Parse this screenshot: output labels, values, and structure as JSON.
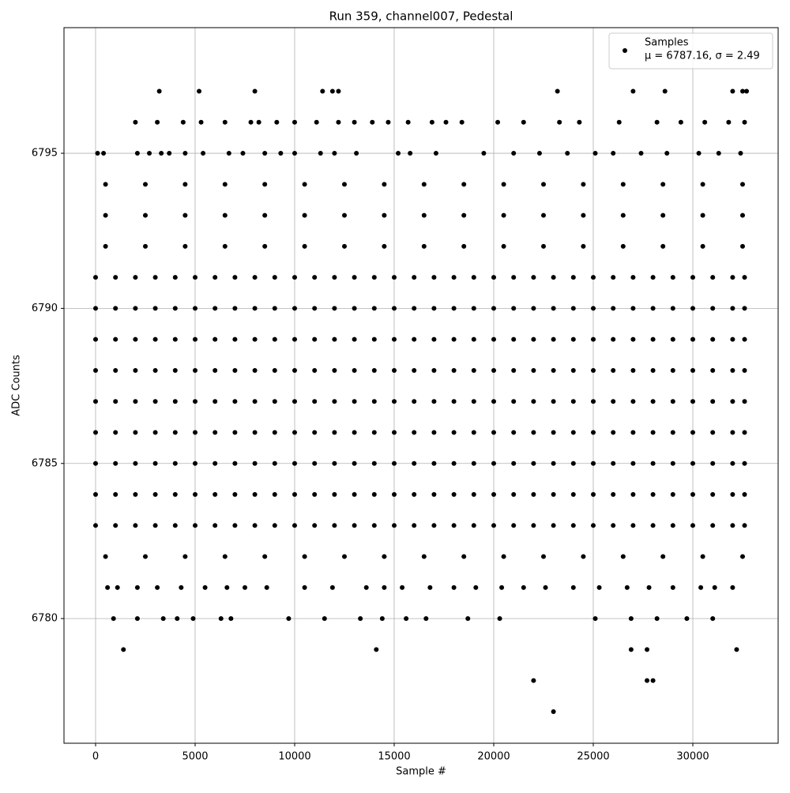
{
  "chart_data": {
    "type": "scatter",
    "title": "Run 359, channel007, Pedestal",
    "x_label": "Sample #",
    "y_label": "ADC Counts",
    "xlim": [
      -1587,
      34286
    ],
    "ylim": [
      6775.98,
      6799.05
    ],
    "xticks": [
      0,
      5000,
      10000,
      15000,
      20000,
      25000,
      30000
    ],
    "yticks": [
      6780,
      6785,
      6790,
      6795
    ],
    "grid": true,
    "legend": "upper right",
    "series": [
      {
        "name": "Samples",
        "subtitle": "μ = 6787.16, σ = 2.49",
        "color": "#000000",
        "x": [
          0,
          1000,
          2000,
          3000,
          4000,
          5000,
          6000,
          7000,
          8000,
          9000,
          10000,
          11000,
          12000,
          13000,
          14000,
          15000,
          16000,
          17000,
          18000,
          19000,
          20000,
          21000,
          22000,
          23000,
          24000,
          25000,
          26000,
          27000,
          28000,
          29000,
          30000,
          31000,
          32000,
          32600,
          0,
          1000,
          2000,
          3000,
          4000,
          5000,
          6000,
          7000,
          8000,
          9000,
          10000,
          11000,
          12000,
          13000,
          14000,
          15000,
          16000,
          17000,
          18000,
          19000,
          20000,
          21000,
          22000,
          23000,
          24000,
          25000,
          26000,
          27000,
          28000,
          29000,
          30000,
          31000,
          32000,
          32600,
          0,
          1000,
          2000,
          3000,
          4000,
          5000,
          6000,
          7000,
          8000,
          9000,
          10000,
          11000,
          12000,
          13000,
          14000,
          15000,
          16000,
          17000,
          18000,
          19000,
          20000,
          21000,
          22000,
          23000,
          24000,
          25000,
          26000,
          27000,
          28000,
          29000,
          30000,
          31000,
          32000,
          32600,
          0,
          1000,
          2000,
          3000,
          4000,
          5000,
          6000,
          7000,
          8000,
          9000,
          10000,
          11000,
          12000,
          13000,
          14000,
          15000,
          16000,
          17000,
          18000,
          19000,
          20000,
          21000,
          22000,
          23000,
          24000,
          25000,
          26000,
          27000,
          28000,
          29000,
          30000,
          31000,
          32000,
          32600,
          0,
          1000,
          2000,
          3000,
          4000,
          5000,
          6000,
          7000,
          8000,
          9000,
          10000,
          11000,
          12000,
          13000,
          14000,
          15000,
          16000,
          17000,
          18000,
          19000,
          20000,
          21000,
          22000,
          23000,
          24000,
          25000,
          26000,
          27000,
          28000,
          29000,
          30000,
          31000,
          32000,
          32600,
          0,
          1000,
          2000,
          3000,
          4000,
          5000,
          6000,
          7000,
          8000,
          9000,
          10000,
          11000,
          12000,
          13000,
          14000,
          15000,
          16000,
          17000,
          18000,
          19000,
          20000,
          21000,
          22000,
          23000,
          24000,
          25000,
          26000,
          27000,
          28000,
          29000,
          30000,
          31000,
          32000,
          32600,
          0,
          1000,
          2000,
          3000,
          4000,
          5000,
          6000,
          7000,
          8000,
          9000,
          10000,
          11000,
          12000,
          13000,
          14000,
          15000,
          16000,
          17000,
          18000,
          19000,
          20000,
          21000,
          22000,
          23000,
          24000,
          25000,
          26000,
          27000,
          28000,
          29000,
          30000,
          31000,
          32000,
          32600,
          0,
          1000,
          2000,
          3000,
          4000,
          5000,
          6000,
          7000,
          8000,
          9000,
          10000,
          11000,
          12000,
          13000,
          14000,
          15000,
          16000,
          17000,
          18000,
          19000,
          20000,
          21000,
          22000,
          23000,
          24000,
          25000,
          26000,
          27000,
          28000,
          29000,
          30000,
          31000,
          32000,
          32600,
          0,
          1000,
          2000,
          3000,
          4000,
          5000,
          6000,
          7000,
          8000,
          9000,
          10000,
          11000,
          12000,
          13000,
          14000,
          15000,
          16000,
          17000,
          18000,
          19000,
          20000,
          21000,
          22000,
          23000,
          24000,
          25000,
          26000,
          27000,
          28000,
          29000,
          30000,
          31000,
          32000,
          32600,
          500,
          2500,
          4500,
          6500,
          8500,
          10500,
          12500,
          14500,
          16500,
          18500,
          20500,
          22500,
          24500,
          26500,
          28500,
          30500,
          32500,
          500,
          2500,
          4500,
          6500,
          8500,
          10500,
          12500,
          14500,
          16500,
          18500,
          20500,
          22500,
          24500,
          26500,
          28500,
          30500,
          32500,
          500,
          2500,
          4500,
          6500,
          8500,
          10500,
          12500,
          14500,
          16500,
          18500,
          20500,
          22500,
          24500,
          26500,
          28500,
          30500,
          32500,
          500,
          2500,
          4500,
          6500,
          8500,
          10500,
          12500,
          14500,
          16500,
          18500,
          20500,
          22500,
          24500,
          26500,
          28500,
          30500,
          32500,
          3200,
          5200,
          8000,
          11400,
          11900,
          12200,
          23200,
          27000,
          28600,
          32000,
          32500,
          32700,
          2000,
          3100,
          4400,
          5300,
          6500,
          7800,
          8200,
          9100,
          10000,
          11100,
          12200,
          13000,
          13900,
          14700,
          15700,
          16900,
          17600,
          18400,
          20200,
          21500,
          23300,
          24300,
          26300,
          28200,
          29400,
          30600,
          31800,
          32600,
          100,
          400,
          2100,
          2700,
          3300,
          3700,
          4500,
          5400,
          6700,
          7400,
          8500,
          9300,
          10000,
          11300,
          12000,
          13100,
          15200,
          15800,
          17100,
          19500,
          21000,
          22300,
          23700,
          25100,
          26000,
          27400,
          28700,
          30300,
          31300,
          32400,
          600,
          1100,
          2100,
          3100,
          4300,
          5500,
          6600,
          7500,
          8600,
          10500,
          11900,
          13600,
          14500,
          15400,
          16800,
          18000,
          19100,
          20400,
          21500,
          22600,
          24000,
          25300,
          26700,
          27800,
          29000,
          30400,
          31100,
          32000,
          900,
          2100,
          3400,
          4100,
          4900,
          6300,
          6800,
          9700,
          11500,
          13300,
          14400,
          15600,
          16600,
          18700,
          20300,
          25100,
          26900,
          28200,
          29700,
          31000,
          1400,
          14100,
          26900,
          27700,
          32200,
          22000,
          27700,
          28000,
          23000
        ],
        "values": [
          6783,
          6783,
          6783,
          6783,
          6783,
          6783,
          6783,
          6783,
          6783,
          6783,
          6783,
          6783,
          6783,
          6783,
          6783,
          6783,
          6783,
          6783,
          6783,
          6783,
          6783,
          6783,
          6783,
          6783,
          6783,
          6783,
          6783,
          6783,
          6783,
          6783,
          6783,
          6783,
          6783,
          6783,
          6784,
          6784,
          6784,
          6784,
          6784,
          6784,
          6784,
          6784,
          6784,
          6784,
          6784,
          6784,
          6784,
          6784,
          6784,
          6784,
          6784,
          6784,
          6784,
          6784,
          6784,
          6784,
          6784,
          6784,
          6784,
          6784,
          6784,
          6784,
          6784,
          6784,
          6784,
          6784,
          6784,
          6784,
          6785,
          6785,
          6785,
          6785,
          6785,
          6785,
          6785,
          6785,
          6785,
          6785,
          6785,
          6785,
          6785,
          6785,
          6785,
          6785,
          6785,
          6785,
          6785,
          6785,
          6785,
          6785,
          6785,
          6785,
          6785,
          6785,
          6785,
          6785,
          6785,
          6785,
          6785,
          6785,
          6785,
          6785,
          6786,
          6786,
          6786,
          6786,
          6786,
          6786,
          6786,
          6786,
          6786,
          6786,
          6786,
          6786,
          6786,
          6786,
          6786,
          6786,
          6786,
          6786,
          6786,
          6786,
          6786,
          6786,
          6786,
          6786,
          6786,
          6786,
          6786,
          6786,
          6786,
          6786,
          6786,
          6786,
          6786,
          6786,
          6787,
          6787,
          6787,
          6787,
          6787,
          6787,
          6787,
          6787,
          6787,
          6787,
          6787,
          6787,
          6787,
          6787,
          6787,
          6787,
          6787,
          6787,
          6787,
          6787,
          6787,
          6787,
          6787,
          6787,
          6787,
          6787,
          6787,
          6787,
          6787,
          6787,
          6787,
          6787,
          6787,
          6787,
          6788,
          6788,
          6788,
          6788,
          6788,
          6788,
          6788,
          6788,
          6788,
          6788,
          6788,
          6788,
          6788,
          6788,
          6788,
          6788,
          6788,
          6788,
          6788,
          6788,
          6788,
          6788,
          6788,
          6788,
          6788,
          6788,
          6788,
          6788,
          6788,
          6788,
          6788,
          6788,
          6788,
          6788,
          6789,
          6789,
          6789,
          6789,
          6789,
          6789,
          6789,
          6789,
          6789,
          6789,
          6789,
          6789,
          6789,
          6789,
          6789,
          6789,
          6789,
          6789,
          6789,
          6789,
          6789,
          6789,
          6789,
          6789,
          6789,
          6789,
          6789,
          6789,
          6789,
          6789,
          6789,
          6789,
          6789,
          6789,
          6790,
          6790,
          6790,
          6790,
          6790,
          6790,
          6790,
          6790,
          6790,
          6790,
          6790,
          6790,
          6790,
          6790,
          6790,
          6790,
          6790,
          6790,
          6790,
          6790,
          6790,
          6790,
          6790,
          6790,
          6790,
          6790,
          6790,
          6790,
          6790,
          6790,
          6790,
          6790,
          6790,
          6790,
          6791,
          6791,
          6791,
          6791,
          6791,
          6791,
          6791,
          6791,
          6791,
          6791,
          6791,
          6791,
          6791,
          6791,
          6791,
          6791,
          6791,
          6791,
          6791,
          6791,
          6791,
          6791,
          6791,
          6791,
          6791,
          6791,
          6791,
          6791,
          6791,
          6791,
          6791,
          6791,
          6791,
          6791,
          6782,
          6782,
          6782,
          6782,
          6782,
          6782,
          6782,
          6782,
          6782,
          6782,
          6782,
          6782,
          6782,
          6782,
          6782,
          6782,
          6782,
          6792,
          6792,
          6792,
          6792,
          6792,
          6792,
          6792,
          6792,
          6792,
          6792,
          6792,
          6792,
          6792,
          6792,
          6792,
          6792,
          6792,
          6793,
          6793,
          6793,
          6793,
          6793,
          6793,
          6793,
          6793,
          6793,
          6793,
          6793,
          6793,
          6793,
          6793,
          6793,
          6793,
          6793,
          6794,
          6794,
          6794,
          6794,
          6794,
          6794,
          6794,
          6794,
          6794,
          6794,
          6794,
          6794,
          6794,
          6794,
          6794,
          6794,
          6794,
          6797,
          6797,
          6797,
          6797,
          6797,
          6797,
          6797,
          6797,
          6797,
          6797,
          6797,
          6797,
          6796,
          6796,
          6796,
          6796,
          6796,
          6796,
          6796,
          6796,
          6796,
          6796,
          6796,
          6796,
          6796,
          6796,
          6796,
          6796,
          6796,
          6796,
          6796,
          6796,
          6796,
          6796,
          6796,
          6796,
          6796,
          6796,
          6796,
          6796,
          6795,
          6795,
          6795,
          6795,
          6795,
          6795,
          6795,
          6795,
          6795,
          6795,
          6795,
          6795,
          6795,
          6795,
          6795,
          6795,
          6795,
          6795,
          6795,
          6795,
          6795,
          6795,
          6795,
          6795,
          6795,
          6795,
          6795,
          6795,
          6795,
          6795,
          6781,
          6781,
          6781,
          6781,
          6781,
          6781,
          6781,
          6781,
          6781,
          6781,
          6781,
          6781,
          6781,
          6781,
          6781,
          6781,
          6781,
          6781,
          6781,
          6781,
          6781,
          6781,
          6781,
          6781,
          6781,
          6781,
          6781,
          6781,
          6780,
          6780,
          6780,
          6780,
          6780,
          6780,
          6780,
          6780,
          6780,
          6780,
          6780,
          6780,
          6780,
          6780,
          6780,
          6780,
          6780,
          6780,
          6780,
          6780,
          6779,
          6779,
          6779,
          6779,
          6779,
          6778,
          6778,
          6778,
          6777
        ]
      }
    ]
  }
}
